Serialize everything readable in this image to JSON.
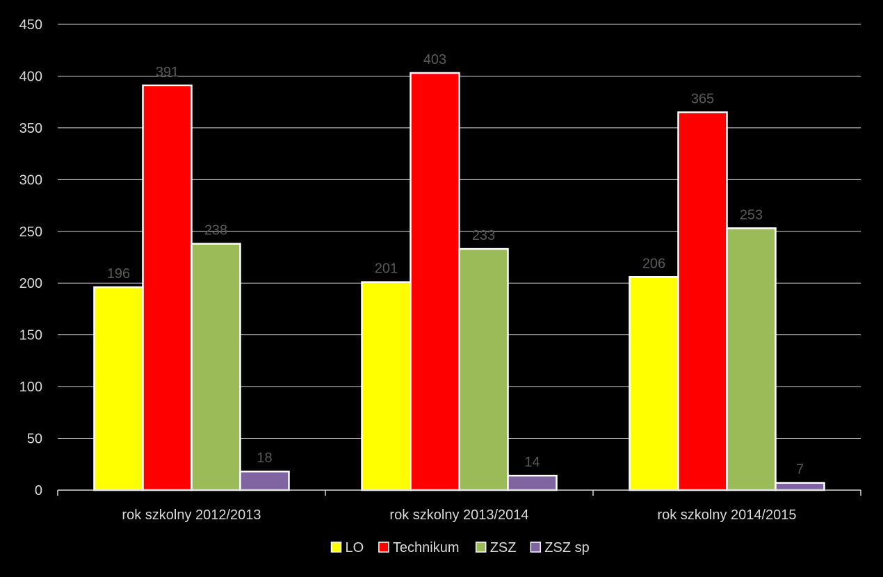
{
  "chart_data": {
    "type": "bar",
    "title": "",
    "xlabel": "",
    "ylabel": "",
    "categories": [
      "rok szkolny 2012/2013",
      "rok szkolny 2013/2014",
      "rok szkolny 2014/2015"
    ],
    "series": [
      {
        "name": "LO",
        "color": "#ffff00",
        "values": [
          196,
          201,
          206
        ]
      },
      {
        "name": "Technikum",
        "color": "#ff0000",
        "values": [
          391,
          403,
          365
        ]
      },
      {
        "name": "ZSZ",
        "color": "#9bbb59",
        "values": [
          238,
          233,
          253
        ]
      },
      {
        "name": "ZSZ sp",
        "color": "#8064a2",
        "values": [
          18,
          14,
          7
        ]
      }
    ],
    "ylim": [
      0,
      450
    ],
    "yticks": [
      0,
      50,
      100,
      150,
      200,
      250,
      300,
      350,
      400,
      450
    ],
    "grid": true,
    "legend": "bottom",
    "data_labels": true
  }
}
